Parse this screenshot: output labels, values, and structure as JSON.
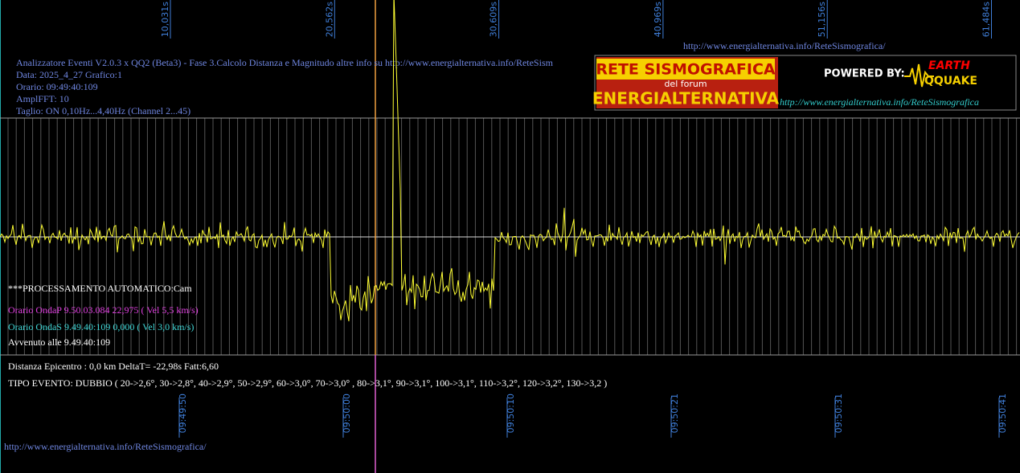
{
  "top_times": [
    "10,031s",
    "20,562s",
    "30,609s",
    "40,969s",
    "51,156s",
    "61,484s"
  ],
  "top_url": "http://www.energialternativa.info/ReteSismografica/",
  "info": [
    "Analizzatore Eventi V2.0.3 x QQ2 (Beta3) - Fase 3.Calcolo Distanza e Magnitudo altre info su http://www.energialternativa.info/ReteSism",
    "Data: 2025_4_27 Grafico:1",
    "Orario: 09:49:40:109",
    "AmplFFT: 10",
    "Taglio: ON 0,10Hz...4,40Hz      (Channel 2...45)"
  ],
  "logo": {
    "title": "RETE SISMOGRAFICA",
    "subtitle": "del forum",
    "name": "ENERGIALTERNATIVA",
    "powered": "POWERED BY:",
    "brand_top": "EARTH",
    "brand_bottom": "QQUAKE",
    "url": "http://www.energialternativa.info/ReteSismografica"
  },
  "processing": "***PROCESSAMENTO AUTOMATICO:Cam",
  "onda_p": "Orario OndaP 9.50.03.084  22,975 ( Vel 5,5 km/s)",
  "onda_s": "Orario OndaS 9.49.40:109  0,000 ( Vel 3,0 km/s)",
  "occurred": "Avvenuto alle 9.49.40:109",
  "distance": "Distanza Epicentro : 0,0 km DeltaT= -22,98s  Fatt:6,60",
  "event_type": "TIPO EVENTO: DUBBIO ( 20->2,6°, 30->2,8°, 40->2,9°, 50->2,9°, 60->3,0°, 70->3,0° , 80->3,1°, 90->3,1°, 100->3,1°, 110->3,2°, 120->3,2°, 130->3,2 )",
  "bottom_times": [
    "09:49:50",
    "09:50:00",
    "09:50:10",
    "09:50:21",
    "09:50:31",
    "09:50:41"
  ],
  "bottom_url": "http://www.energialternativa.info/ReteSismografica/"
}
